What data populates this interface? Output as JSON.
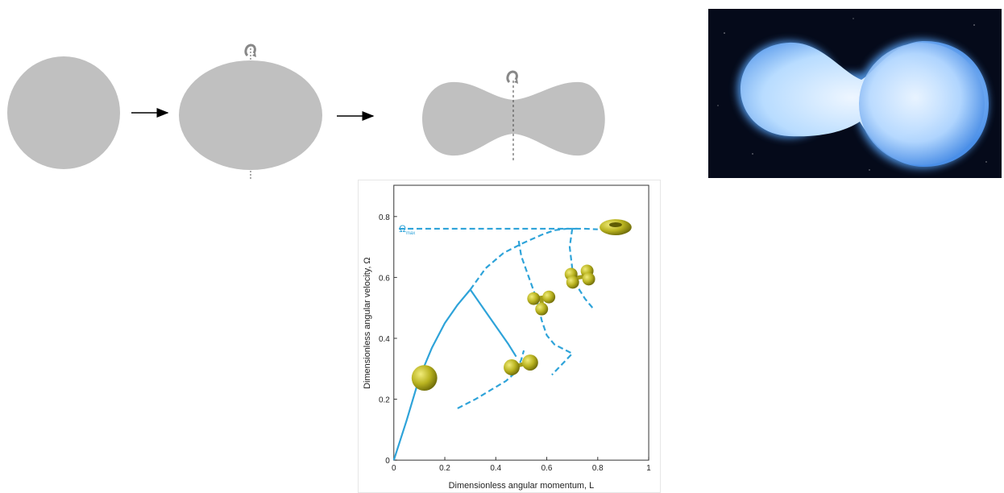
{
  "colors": {
    "shape_gray": "#c0c0c0",
    "curve_blue": "#2ea3d9",
    "blob_yellow": "#b9b320",
    "star_blue": "#8ec8ff",
    "space_dark": "#050a1a"
  },
  "icons": [
    "arrow-right-icon",
    "rotation-arrow-icon",
    "dumbbell-icon",
    "torus-icon",
    "sphere-icon"
  ],
  "chart_data": {
    "type": "line",
    "xlabel": "Dimensionless angular momentum, L",
    "ylabel": "Dimensionless angular velocity, Ω",
    "xlim": [
      0,
      1
    ],
    "ylim": [
      0,
      0.85
    ],
    "xticks": [
      "0",
      "0.2",
      "0.4",
      "0.6",
      "0.8",
      "1"
    ],
    "xtick_values": [
      0,
      0.2,
      0.4,
      0.6,
      0.8,
      1
    ],
    "yticks": [
      "0",
      "0.2",
      "0.4",
      "0.6",
      "0.8"
    ],
    "ytick_values": [
      0,
      0.2,
      0.4,
      0.6,
      0.8
    ],
    "omega_label": "Ω",
    "omega_subscript": "max",
    "omega_max": 0.76,
    "grid": false,
    "series": [
      {
        "style": "solid",
        "x": [
          0,
          0.05,
          0.1,
          0.15,
          0.2,
          0.25,
          0.3
        ],
        "y": [
          0,
          0.13,
          0.27,
          0.37,
          0.45,
          0.51,
          0.56
        ]
      },
      {
        "style": "solid",
        "x": [
          0.3,
          0.35,
          0.4,
          0.45,
          0.48
        ],
        "y": [
          0.56,
          0.5,
          0.44,
          0.38,
          0.34
        ]
      },
      {
        "style": "dashed",
        "x": [
          0.3,
          0.36,
          0.43,
          0.5,
          0.58,
          0.63,
          0.68,
          0.72
        ],
        "y": [
          0.56,
          0.63,
          0.68,
          0.71,
          0.74,
          0.755,
          0.76,
          0.76
        ]
      },
      {
        "style": "dashed",
        "x": [
          0.02,
          0.2,
          0.4,
          0.6,
          0.75,
          0.8
        ],
        "y": [
          0.76,
          0.76,
          0.76,
          0.76,
          0.76,
          0.758
        ]
      },
      {
        "style": "dashed",
        "x": [
          0.25,
          0.32,
          0.38,
          0.44,
          0.48,
          0.5,
          0.51
        ],
        "y": [
          0.17,
          0.2,
          0.23,
          0.26,
          0.29,
          0.33,
          0.36
        ]
      },
      {
        "style": "dashed",
        "x": [
          0.49,
          0.5,
          0.53,
          0.56,
          0.58,
          0.6,
          0.63,
          0.7,
          0.62
        ],
        "y": [
          0.72,
          0.67,
          0.6,
          0.53,
          0.46,
          0.41,
          0.38,
          0.35,
          0.28
        ]
      },
      {
        "style": "dashed",
        "x": [
          0.7,
          0.69,
          0.7,
          0.72,
          0.75,
          0.78
        ],
        "y": [
          0.76,
          0.7,
          0.63,
          0.57,
          0.53,
          0.5
        ]
      }
    ],
    "markers": [
      {
        "kind": "sphere",
        "x": 0.12,
        "y": 0.27
      },
      {
        "kind": "dumbbell2",
        "x": 0.5,
        "y": 0.31
      },
      {
        "kind": "cluster3",
        "x": 0.58,
        "y": 0.52
      },
      {
        "kind": "cluster4",
        "x": 0.73,
        "y": 0.6
      },
      {
        "kind": "torus",
        "x": 0.87,
        "y": 0.765
      }
    ]
  }
}
